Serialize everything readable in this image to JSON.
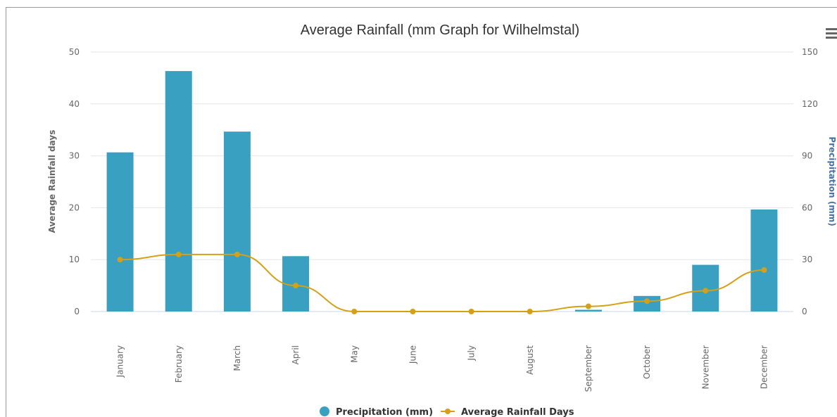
{
  "menu": {
    "icon": "hamburger-menu-icon"
  },
  "chart_data": {
    "type": "bar",
    "title": "Average Rainfall (mm Graph for Wilhelmstal)",
    "categories": [
      "January",
      "February",
      "March",
      "April",
      "May",
      "June",
      "July",
      "August",
      "September",
      "October",
      "November",
      "December"
    ],
    "series": [
      {
        "name": "Precipitation (mm)",
        "type": "bar",
        "axis": "right",
        "color": "#39a0c1",
        "values": [
          92,
          139,
          104,
          32,
          0,
          0,
          0,
          0,
          1,
          9,
          27,
          59
        ]
      },
      {
        "name": "Average Rainfall Days",
        "type": "line",
        "axis": "left",
        "color": "#d4a017",
        "values": [
          10,
          11,
          11,
          5,
          0,
          0,
          0,
          0,
          1,
          2,
          4,
          8
        ]
      }
    ],
    "y_left": {
      "label": "Average Rainfall days",
      "ticks": [
        "0",
        "10",
        "20",
        "30",
        "40",
        "50"
      ],
      "range": [
        0,
        50
      ],
      "color": "#666666"
    },
    "y_right": {
      "label": "Precipitation (mm)",
      "ticks": [
        "0",
        "30",
        "60",
        "90",
        "120",
        "150"
      ],
      "range": [
        0,
        150
      ],
      "color": "#4572a7"
    },
    "grid": true,
    "legend_position": "bottom-center"
  }
}
